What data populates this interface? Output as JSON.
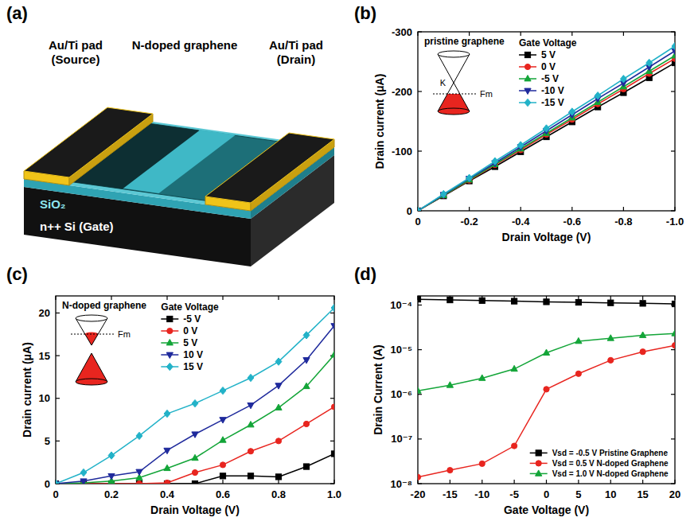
{
  "diagram": {
    "panel_label": "(a)",
    "labels": {
      "source": [
        "Au/Ti pad",
        "(Source)"
      ],
      "channel": "N-doped graphene",
      "drain": [
        "Au/Ti pad",
        "(Drain)"
      ],
      "oxide": "SiO₂",
      "gate": "n++ Si (Gate)"
    }
  },
  "chart_data": [
    {
      "type": "line",
      "panel_label": "(b)",
      "title": "pristine graphene",
      "annotations": [
        "K",
        "Fm"
      ],
      "x_label": "Drain Voltage (V)",
      "y_label": "Drain current (μA)",
      "x": [
        0,
        -0.1,
        -0.2,
        -0.3,
        -0.4,
        -0.5,
        -0.6,
        -0.7,
        -0.8,
        -0.9,
        -1.0
      ],
      "xlim": [
        0,
        -1
      ],
      "xticks": [
        0,
        -0.2,
        -0.4,
        -0.6,
        -0.8,
        {
          "value": -1,
          "label": "-1.0"
        }
      ],
      "ylim": [
        0,
        -300
      ],
      "yticks": [
        0,
        -100,
        -200,
        -300
      ],
      "grid": false,
      "legend": "upper center",
      "legend_title": "Gate Voltage",
      "series": [
        {
          "name": "5 V",
          "color": "#000000",
          "marker": "square",
          "values": [
            0,
            -25,
            -50,
            -74,
            -99,
            -124,
            -149,
            -174,
            -198,
            -223,
            -248
          ]
        },
        {
          "name": "0 V",
          "color": "#e8251f",
          "marker": "circle",
          "values": [
            0,
            -26,
            -51,
            -77,
            -102,
            -128,
            -153,
            -179,
            -204,
            -230,
            -255
          ]
        },
        {
          "name": "-5 V",
          "color": "#13a538",
          "marker": "triangle",
          "values": [
            0,
            -26,
            -52,
            -78,
            -104,
            -130,
            -156,
            -182,
            -208,
            -234,
            -260
          ]
        },
        {
          "name": "-10 V",
          "color": "#1f2a9c",
          "marker": "triangle-down",
          "values": [
            0,
            -27,
            -54,
            -80,
            -107,
            -134,
            -161,
            -188,
            -214,
            -241,
            -268
          ]
        },
        {
          "name": "-15 V",
          "color": "#22b2c8",
          "marker": "diamond",
          "values": [
            0,
            -28,
            -55,
            -83,
            -110,
            -138,
            -166,
            -193,
            -221,
            -248,
            -276
          ]
        }
      ]
    },
    {
      "type": "line",
      "panel_label": "(c)",
      "title": "N-doped graphene",
      "annotations": [
        "Fm"
      ],
      "x_label": "Drain Voltage (V)",
      "y_label": "Drain current (μA)",
      "x": [
        0,
        0.1,
        0.2,
        0.3,
        0.4,
        0.5,
        0.6,
        0.7,
        0.8,
        0.9,
        1.0
      ],
      "xlim": [
        0,
        1
      ],
      "xticks": [
        0,
        0.2,
        0.4,
        0.6,
        0.8,
        {
          "value": 1,
          "label": "1.0"
        }
      ],
      "ylim": [
        0,
        22
      ],
      "yticks": [
        0,
        5,
        10,
        15,
        20
      ],
      "grid": false,
      "legend": "upper center",
      "legend_title": "Gate Voltage",
      "series": [
        {
          "name": "-5 V",
          "color": "#000000",
          "marker": "square",
          "values": [
            0,
            0,
            0,
            0,
            0,
            0,
            0.9,
            0.9,
            0.8,
            2.0,
            3.5
          ]
        },
        {
          "name": "0 V",
          "color": "#e8251f",
          "marker": "circle",
          "values": [
            0,
            0,
            0,
            0,
            0.1,
            1.3,
            2.2,
            3.8,
            5.0,
            7.0,
            9.0
          ]
        },
        {
          "name": "5 V",
          "color": "#13a538",
          "marker": "triangle",
          "values": [
            0,
            0.1,
            0.3,
            0.7,
            1.8,
            3.0,
            5.1,
            6.9,
            8.9,
            11.4,
            15.1
          ]
        },
        {
          "name": "10 V",
          "color": "#1f2a9c",
          "marker": "triangle-down",
          "values": [
            0,
            0.3,
            0.9,
            1.4,
            3.9,
            5.8,
            7.5,
            9.2,
            11.5,
            14.5,
            18.5
          ]
        },
        {
          "name": "15 V",
          "color": "#22b2c8",
          "marker": "diamond",
          "values": [
            0,
            1.3,
            3.3,
            5.6,
            8.2,
            9.4,
            10.9,
            12.4,
            14.3,
            17.4,
            20.6
          ]
        }
      ]
    },
    {
      "type": "line",
      "panel_label": "(d)",
      "x_label": "Gate Voltage (V)",
      "y_label": "Drain Current (A)",
      "x": [
        -20,
        -15,
        -10,
        -5,
        0,
        5,
        10,
        15,
        20
      ],
      "xlim": [
        -20,
        20
      ],
      "xticks": [
        -20,
        -15,
        -10,
        -5,
        0,
        5,
        10,
        15,
        20
      ],
      "log": "y",
      "ylim": [
        1e-08,
        0.00016
      ],
      "yticks": [
        {
          "value": 1e-08,
          "label": "10⁻⁸"
        },
        {
          "value": 1e-07,
          "label": "10⁻⁷"
        },
        {
          "value": 1e-06,
          "label": "10⁻⁶"
        },
        {
          "value": 1e-05,
          "label": "10⁻⁵"
        },
        {
          "value": 0.0001,
          "label": "10⁻⁴"
        }
      ],
      "grid": false,
      "legend": "lower right",
      "series": [
        {
          "name": "Vsd = -0.5 V  Pristine Graphene",
          "color": "#000000",
          "marker": "square",
          "values": [
            0.000135,
            0.00013,
            0.000126,
            0.000122,
            0.000118,
            0.000115,
            0.000112,
            0.000109,
            0.000106
          ]
        },
        {
          "name": "Vsd = 0.5 V  N-doped Graphene",
          "color": "#e8251f",
          "marker": "circle",
          "values": [
            1.4e-08,
            2e-08,
            2.8e-08,
            7e-08,
            1.3e-06,
            2.9e-06,
            5.8e-06,
            9e-06,
            1.25e-05
          ]
        },
        {
          "name": "Vsd = 1.0 V  N-doped Graphene",
          "color": "#13a538",
          "marker": "triangle",
          "values": [
            1.2e-06,
            1.6e-06,
            2.3e-06,
            3.7e-06,
            8.5e-06,
            1.55e-05,
            1.8e-05,
            2.1e-05,
            2.3e-05
          ]
        }
      ]
    }
  ]
}
